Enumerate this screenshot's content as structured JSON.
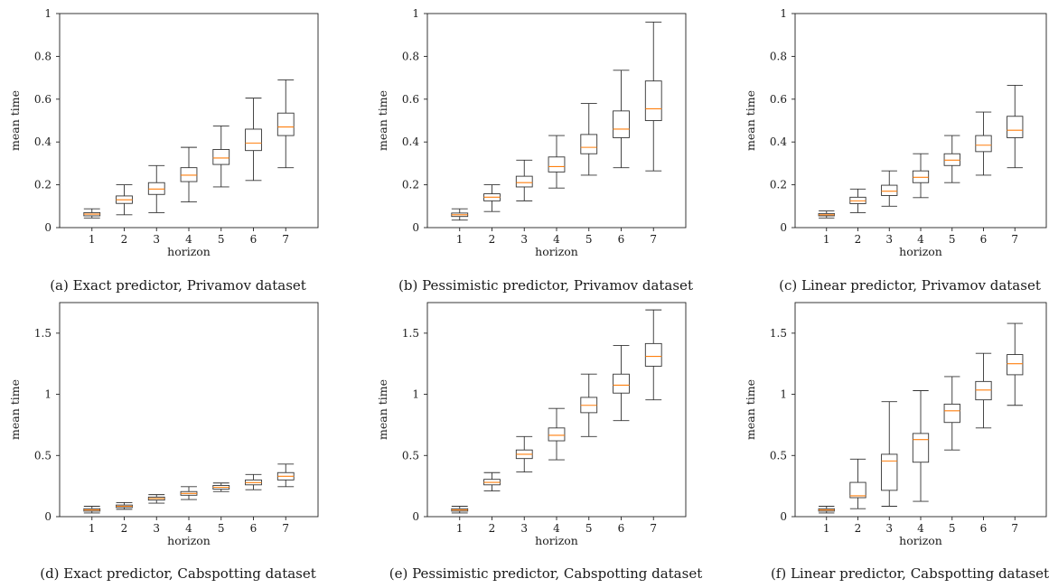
{
  "colors": {
    "median": "#ff7f0e",
    "box": "#333333",
    "axes": "#222222"
  },
  "chart_data": [
    {
      "type": "box",
      "caption": "(a) Exact predictor, Privamov dataset",
      "xlabel": "horizon",
      "ylabel": "mean time",
      "categories": [
        "1",
        "2",
        "3",
        "4",
        "5",
        "6",
        "7"
      ],
      "ylim": [
        0,
        1
      ],
      "yticks": [
        0,
        0.2,
        0.4,
        0.6,
        0.8,
        1
      ],
      "ytick_labels": [
        "0",
        "0.2",
        "0.4",
        "0.6",
        "0.8",
        "1"
      ],
      "boxes": [
        {
          "min": 0.045,
          "q1": 0.055,
          "median": 0.063,
          "q3": 0.07,
          "max": 0.088
        },
        {
          "min": 0.06,
          "q1": 0.113,
          "median": 0.13,
          "q3": 0.148,
          "max": 0.2
        },
        {
          "min": 0.07,
          "q1": 0.155,
          "median": 0.18,
          "q3": 0.21,
          "max": 0.29
        },
        {
          "min": 0.12,
          "q1": 0.215,
          "median": 0.245,
          "q3": 0.28,
          "max": 0.375
        },
        {
          "min": 0.19,
          "q1": 0.295,
          "median": 0.325,
          "q3": 0.365,
          "max": 0.475
        },
        {
          "min": 0.22,
          "q1": 0.36,
          "median": 0.395,
          "q3": 0.46,
          "max": 0.605
        },
        {
          "min": 0.28,
          "q1": 0.43,
          "median": 0.47,
          "q3": 0.535,
          "max": 0.69
        }
      ]
    },
    {
      "type": "box",
      "caption": "(b) Pessimistic predictor, Privamov dataset",
      "xlabel": "horizon",
      "ylabel": "mean time",
      "categories": [
        "1",
        "2",
        "3",
        "4",
        "5",
        "6",
        "7"
      ],
      "ylim": [
        0,
        1
      ],
      "yticks": [
        0,
        0.2,
        0.4,
        0.6,
        0.8,
        1
      ],
      "ytick_labels": [
        "0",
        "0.2",
        "0.4",
        "0.6",
        "0.8",
        "1"
      ],
      "boxes": [
        {
          "min": 0.035,
          "q1": 0.052,
          "median": 0.06,
          "q3": 0.068,
          "max": 0.088
        },
        {
          "min": 0.075,
          "q1": 0.125,
          "median": 0.142,
          "q3": 0.158,
          "max": 0.2
        },
        {
          "min": 0.125,
          "q1": 0.19,
          "median": 0.21,
          "q3": 0.24,
          "max": 0.315
        },
        {
          "min": 0.185,
          "q1": 0.26,
          "median": 0.285,
          "q3": 0.33,
          "max": 0.43
        },
        {
          "min": 0.245,
          "q1": 0.345,
          "median": 0.375,
          "q3": 0.435,
          "max": 0.58
        },
        {
          "min": 0.28,
          "q1": 0.42,
          "median": 0.46,
          "q3": 0.545,
          "max": 0.735
        },
        {
          "min": 0.265,
          "q1": 0.5,
          "median": 0.555,
          "q3": 0.685,
          "max": 0.96
        }
      ]
    },
    {
      "type": "box",
      "caption": "(c) Linear predictor, Privamov dataset",
      "xlabel": "horizon",
      "ylabel": "mean time",
      "categories": [
        "1",
        "2",
        "3",
        "4",
        "5",
        "6",
        "7"
      ],
      "ylim": [
        0,
        1
      ],
      "yticks": [
        0,
        0.2,
        0.4,
        0.6,
        0.8,
        1
      ],
      "ytick_labels": [
        "0",
        "0.2",
        "0.4",
        "0.6",
        "0.8",
        "1"
      ],
      "boxes": [
        {
          "min": 0.045,
          "q1": 0.055,
          "median": 0.06,
          "q3": 0.066,
          "max": 0.078
        },
        {
          "min": 0.07,
          "q1": 0.112,
          "median": 0.125,
          "q3": 0.142,
          "max": 0.18
        },
        {
          "min": 0.1,
          "q1": 0.15,
          "median": 0.17,
          "q3": 0.198,
          "max": 0.265
        },
        {
          "min": 0.14,
          "q1": 0.21,
          "median": 0.235,
          "q3": 0.265,
          "max": 0.345
        },
        {
          "min": 0.21,
          "q1": 0.29,
          "median": 0.315,
          "q3": 0.345,
          "max": 0.43
        },
        {
          "min": 0.245,
          "q1": 0.355,
          "median": 0.385,
          "q3": 0.43,
          "max": 0.54
        },
        {
          "min": 0.28,
          "q1": 0.42,
          "median": 0.455,
          "q3": 0.52,
          "max": 0.665
        }
      ]
    },
    {
      "type": "box",
      "caption": "(d) Exact predictor, Cabspotting dataset",
      "xlabel": "horizon",
      "ylabel": "mean time",
      "categories": [
        "1",
        "2",
        "3",
        "4",
        "5",
        "6",
        "7"
      ],
      "ylim": [
        0,
        1.75
      ],
      "yticks": [
        0,
        0.5,
        1,
        1.5
      ],
      "ytick_labels": [
        "0",
        "0.5",
        "1",
        "1.5"
      ],
      "boxes": [
        {
          "min": 0.03,
          "q1": 0.045,
          "median": 0.055,
          "q3": 0.065,
          "max": 0.085
        },
        {
          "min": 0.06,
          "q1": 0.075,
          "median": 0.085,
          "q3": 0.095,
          "max": 0.115
        },
        {
          "min": 0.11,
          "q1": 0.135,
          "median": 0.148,
          "q3": 0.16,
          "max": 0.18
        },
        {
          "min": 0.14,
          "q1": 0.175,
          "median": 0.19,
          "q3": 0.205,
          "max": 0.245
        },
        {
          "min": 0.205,
          "q1": 0.225,
          "median": 0.24,
          "q3": 0.255,
          "max": 0.275
        },
        {
          "min": 0.22,
          "q1": 0.26,
          "median": 0.278,
          "q3": 0.3,
          "max": 0.345
        },
        {
          "min": 0.245,
          "q1": 0.3,
          "median": 0.33,
          "q3": 0.36,
          "max": 0.43
        }
      ]
    },
    {
      "type": "box",
      "caption": "(e) Pessimistic predictor, Cabspotting dataset",
      "xlabel": "horizon",
      "ylabel": "mean time",
      "categories": [
        "1",
        "2",
        "3",
        "4",
        "5",
        "6",
        "7"
      ],
      "ylim": [
        0,
        1.75
      ],
      "yticks": [
        0,
        0.5,
        1,
        1.5
      ],
      "ytick_labels": [
        "0",
        "0.5",
        "1",
        "1.5"
      ],
      "boxes": [
        {
          "min": 0.03,
          "q1": 0.045,
          "median": 0.055,
          "q3": 0.065,
          "max": 0.085
        },
        {
          "min": 0.21,
          "q1": 0.26,
          "median": 0.28,
          "q3": 0.305,
          "max": 0.36
        },
        {
          "min": 0.365,
          "q1": 0.475,
          "median": 0.51,
          "q3": 0.545,
          "max": 0.655
        },
        {
          "min": 0.465,
          "q1": 0.62,
          "median": 0.665,
          "q3": 0.725,
          "max": 0.885
        },
        {
          "min": 0.655,
          "q1": 0.85,
          "median": 0.91,
          "q3": 0.975,
          "max": 1.165
        },
        {
          "min": 0.785,
          "q1": 1.01,
          "median": 1.075,
          "q3": 1.165,
          "max": 1.4
        },
        {
          "min": 0.955,
          "q1": 1.23,
          "median": 1.31,
          "q3": 1.415,
          "max": 1.69
        }
      ]
    },
    {
      "type": "box",
      "caption": "(f) Linear predictor, Cabspotting dataset",
      "xlabel": "horizon",
      "ylabel": "mean time",
      "categories": [
        "1",
        "2",
        "3",
        "4",
        "5",
        "6",
        "7"
      ],
      "ylim": [
        0,
        1.75
      ],
      "yticks": [
        0,
        0.5,
        1,
        1.5
      ],
      "ytick_labels": [
        "0",
        "0.5",
        "1",
        "1.5"
      ],
      "boxes": [
        {
          "min": 0.03,
          "q1": 0.045,
          "median": 0.055,
          "q3": 0.065,
          "max": 0.085
        },
        {
          "min": 0.065,
          "q1": 0.155,
          "median": 0.17,
          "q3": 0.28,
          "max": 0.47
        },
        {
          "min": 0.085,
          "q1": 0.215,
          "median": 0.455,
          "q3": 0.51,
          "max": 0.94
        },
        {
          "min": 0.125,
          "q1": 0.445,
          "median": 0.63,
          "q3": 0.68,
          "max": 1.03
        },
        {
          "min": 0.545,
          "q1": 0.77,
          "median": 0.865,
          "q3": 0.92,
          "max": 1.145
        },
        {
          "min": 0.725,
          "q1": 0.955,
          "median": 1.035,
          "q3": 1.105,
          "max": 1.335
        },
        {
          "min": 0.91,
          "q1": 1.16,
          "median": 1.25,
          "q3": 1.325,
          "max": 1.58
        }
      ]
    }
  ]
}
